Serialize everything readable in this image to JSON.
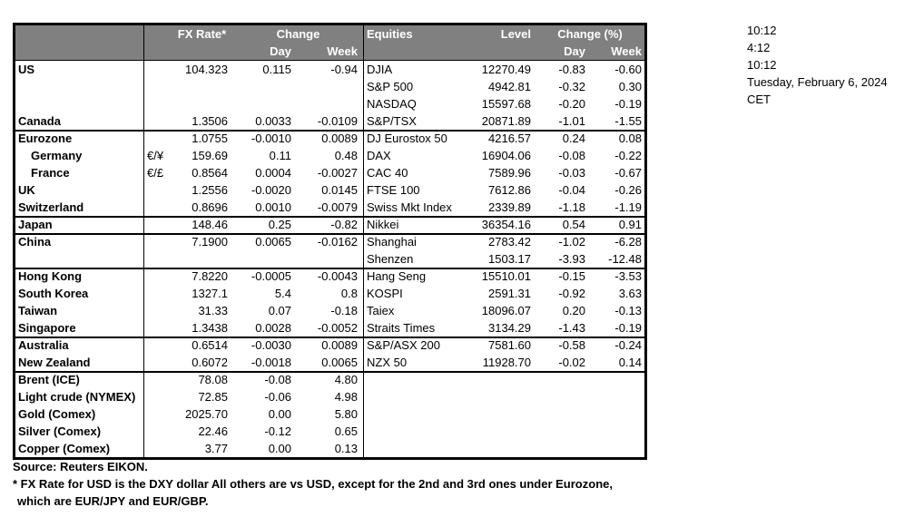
{
  "times": {
    "lines": [
      "10:12",
      "4:12",
      "10:12",
      "Tuesday, February 6, 2024",
      "CET"
    ]
  },
  "table": {
    "fx_header": {
      "rate": "FX Rate*",
      "change": "Change",
      "day": "Day",
      "week": "Week"
    },
    "eq_header": {
      "title": "Equities",
      "level": "Level",
      "change": "Change (%)",
      "day": "Day",
      "week": "Week"
    },
    "rows": [
      {
        "name": "US",
        "sym": "",
        "rate": "104.323",
        "day": "0.115",
        "week": "-0.94",
        "eq": "DJIA",
        "level": "12270.49",
        "eday": "-0.83",
        "eweek": "-0.60",
        "sep": false,
        "indent": false
      },
      {
        "name": "",
        "sym": "",
        "rate": "",
        "day": "",
        "week": "",
        "eq": "S&P 500",
        "level": "4942.81",
        "eday": "-0.32",
        "eweek": "0.30",
        "sep": false,
        "indent": false
      },
      {
        "name": "",
        "sym": "",
        "rate": "",
        "day": "",
        "week": "",
        "eq": "NASDAQ",
        "level": "15597.68",
        "eday": "-0.20",
        "eweek": "-0.19",
        "sep": false,
        "indent": false
      },
      {
        "name": "Canada",
        "sym": "",
        "rate": "1.3506",
        "day": "0.0033",
        "week": "-0.0109",
        "eq": "S&P/TSX",
        "level": "20871.89",
        "eday": "-1.01",
        "eweek": "-1.55",
        "sep": false,
        "indent": false
      },
      {
        "name": "Eurozone",
        "sym": "",
        "rate": "1.0755",
        "day": "-0.0010",
        "week": "0.0089",
        "eq": "DJ Eurostox 50",
        "level": "4216.57",
        "eday": "0.24",
        "eweek": "0.08",
        "sep": true,
        "indent": false
      },
      {
        "name": "Germany",
        "sym": "€/¥",
        "rate": "159.69",
        "day": "0.11",
        "week": "0.48",
        "eq": "DAX",
        "level": "16904.06",
        "eday": "-0.08",
        "eweek": "-0.22",
        "sep": false,
        "indent": true
      },
      {
        "name": "France",
        "sym": "€/£",
        "rate": "0.8564",
        "day": "0.0004",
        "week": "-0.0027",
        "eq": "CAC 40",
        "level": "7589.96",
        "eday": "-0.03",
        "eweek": "-0.67",
        "sep": false,
        "indent": true
      },
      {
        "name": "UK",
        "sym": "",
        "rate": "1.2556",
        "day": "-0.0020",
        "week": "0.0145",
        "eq": "FTSE 100",
        "level": "7612.86",
        "eday": "-0.04",
        "eweek": "-0.26",
        "sep": false,
        "indent": false
      },
      {
        "name": "Switzerland",
        "sym": "",
        "rate": "0.8696",
        "day": "0.0010",
        "week": "-0.0079",
        "eq": "Swiss Mkt Index",
        "level": "2339.89",
        "eday": "-1.18",
        "eweek": "-1.19",
        "sep": false,
        "indent": false
      },
      {
        "name": "Japan",
        "sym": "",
        "rate": "148.46",
        "day": "0.25",
        "week": "-0.82",
        "eq": "Nikkei",
        "level": "36354.16",
        "eday": "0.54",
        "eweek": "0.91",
        "sep": true,
        "indent": false
      },
      {
        "name": "China",
        "sym": "",
        "rate": "7.1900",
        "day": "0.0065",
        "week": "-0.0162",
        "eq": "Shanghai",
        "level": "2783.42",
        "eday": "-1.02",
        "eweek": "-6.28",
        "sep": true,
        "indent": false
      },
      {
        "name": "",
        "sym": "",
        "rate": "",
        "day": "",
        "week": "",
        "eq": "Shenzen",
        "level": "1503.17",
        "eday": "-3.93",
        "eweek": "-12.48",
        "sep": false,
        "indent": false
      },
      {
        "name": "Hong Kong",
        "sym": "",
        "rate": "7.8220",
        "day": "-0.0005",
        "week": "-0.0043",
        "eq": "Hang Seng",
        "level": "15510.01",
        "eday": "-0.15",
        "eweek": "-3.53",
        "sep": true,
        "indent": false
      },
      {
        "name": "South Korea",
        "sym": "",
        "rate": "1327.1",
        "day": "5.4",
        "week": "0.8",
        "eq": "KOSPI",
        "level": "2591.31",
        "eday": "-0.92",
        "eweek": "3.63",
        "sep": false,
        "indent": false
      },
      {
        "name": "Taiwan",
        "sym": "",
        "rate": "31.33",
        "day": "0.07",
        "week": "-0.18",
        "eq": "Taiex",
        "level": "18096.07",
        "eday": "0.20",
        "eweek": "-0.13",
        "sep": false,
        "indent": false
      },
      {
        "name": "Singapore",
        "sym": "",
        "rate": "1.3438",
        "day": "0.0028",
        "week": "-0.0052",
        "eq": "Straits Times",
        "level": "3134.29",
        "eday": "-1.43",
        "eweek": "-0.19",
        "sep": false,
        "indent": false
      },
      {
        "name": "Australia",
        "sym": "",
        "rate": "0.6514",
        "day": "-0.0030",
        "week": "0.0089",
        "eq": "S&P/ASX 200",
        "level": "7581.60",
        "eday": "-0.58",
        "eweek": "-0.24",
        "sep": true,
        "indent": false
      },
      {
        "name": "New Zealand",
        "sym": "",
        "rate": "0.6072",
        "day": "-0.0018",
        "week": "0.0065",
        "eq": "NZX 50",
        "level": "11928.70",
        "eday": "-0.02",
        "eweek": "0.14",
        "sep": false,
        "indent": false
      },
      {
        "name": "Brent (ICE)",
        "sym": "",
        "rate": "78.08",
        "day": "-0.08",
        "week": "4.80",
        "eq": "",
        "level": "",
        "eday": "",
        "eweek": "",
        "sep": true,
        "indent": false
      },
      {
        "name": "Light crude (NYMEX)",
        "sym": "",
        "rate": "72.85",
        "day": "-0.06",
        "week": "4.98",
        "eq": "",
        "level": "",
        "eday": "",
        "eweek": "",
        "sep": false,
        "indent": false
      },
      {
        "name": "Gold (Comex)",
        "sym": "",
        "rate": "2025.70",
        "day": "0.00",
        "week": "5.80",
        "eq": "",
        "level": "",
        "eday": "",
        "eweek": "",
        "sep": false,
        "indent": false
      },
      {
        "name": "Silver (Comex)",
        "sym": "",
        "rate": "22.46",
        "day": "-0.12",
        "week": "0.65",
        "eq": "",
        "level": "",
        "eday": "",
        "eweek": "",
        "sep": false,
        "indent": false
      },
      {
        "name": "Copper (Comex)",
        "sym": "",
        "rate": "3.77",
        "day": "0.00",
        "week": "0.13",
        "eq": "",
        "level": "",
        "eday": "",
        "eweek": "",
        "sep": false,
        "indent": false
      }
    ]
  },
  "footer": {
    "source": "Source:  Reuters EIKON.",
    "note1": "* FX Rate for USD is the DXY dollar  All others are vs USD, except for the 2nd and 3rd ones under Eurozone,",
    "note2": "which are EUR/JPY and EUR/GBP."
  },
  "colors": {
    "header_bg": "#808080",
    "header_text": "#ffffff",
    "border": "#000000",
    "text": "#000000"
  }
}
